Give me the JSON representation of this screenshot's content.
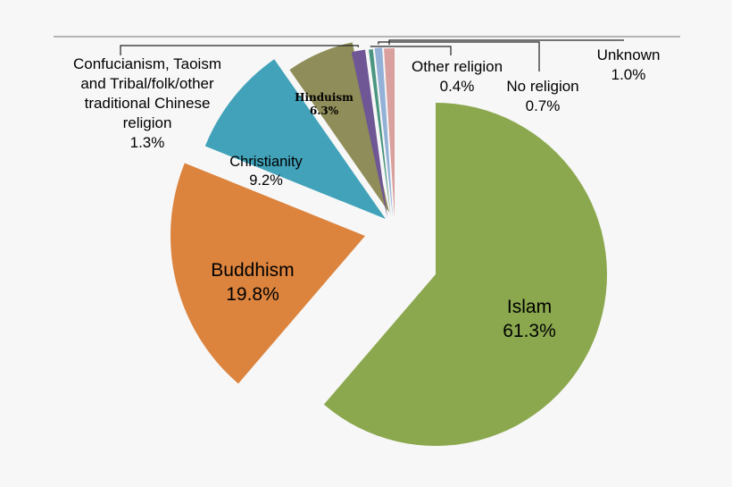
{
  "chart_data": {
    "type": "pie",
    "title": "",
    "slices": [
      {
        "label": "Islam",
        "value": 61.3,
        "value_text": "61.3%",
        "color": "#8ba84e"
      },
      {
        "label": "Buddhism",
        "value": 19.8,
        "value_text": "19.8%",
        "color": "#dc843e"
      },
      {
        "label": "Christianity",
        "value": 9.2,
        "value_text": "9.2%",
        "color": "#41a2b9"
      },
      {
        "label": "Hinduism",
        "value": 6.3,
        "value_text": "6.3%",
        "color": "#8f8d59"
      },
      {
        "label": "Confucianism, Taoism and Tribal/folk/other traditional Chinese religion",
        "label_lines": [
          "Confucianism, Taoism",
          "and Tribal/folk/other",
          "traditional Chinese",
          "religion"
        ],
        "value": 1.3,
        "value_text": "1.3%",
        "color": "#6f5695"
      },
      {
        "label": "Other religion",
        "value": 0.4,
        "value_text": "0.4%",
        "color": "#4b9680"
      },
      {
        "label": "No religion",
        "value": 0.7,
        "value_text": "0.7%",
        "color": "#93b1d7"
      },
      {
        "label": "Unknown",
        "value": 1.0,
        "value_text": "1.0%",
        "color": "#d9a09e"
      }
    ],
    "legend": "none"
  }
}
